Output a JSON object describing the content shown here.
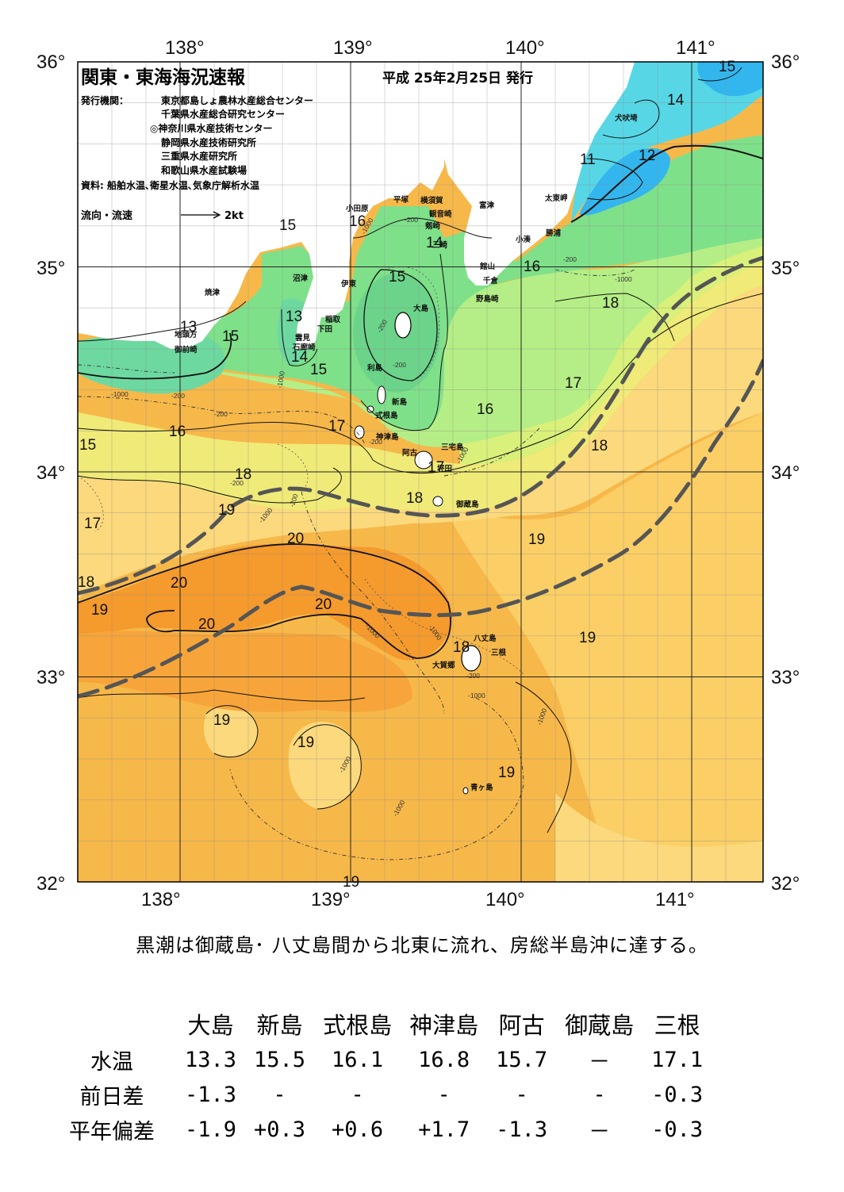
{
  "header": {
    "title": "関東・東海海況速報",
    "issue": "平成 25年2月25日 発行",
    "issuer_label": "発行機関：",
    "issuers": [
      "東京都島しょ農林水産総合センター",
      "千葉県水産総合研究センター",
      "◎神奈川県水産技術センター",
      "静岡県水産技術研究所",
      "三重県水産研究所",
      "和歌山県水産試験場"
    ],
    "source": "資料: 船舶水温､衛星水温､気象庁解析水温",
    "legend_label": "流向・流速",
    "legend_scale": "2kt"
  },
  "axes": {
    "lon": [
      "138°",
      "139°",
      "140°",
      "141°"
    ],
    "lat": [
      "36°",
      "35°",
      "34°",
      "33°",
      "32°"
    ]
  },
  "isotherm_labels": [
    "15",
    "16",
    "13",
    "15",
    "14",
    "15",
    "14",
    "11",
    "12",
    "14",
    "15",
    "13",
    "14",
    "15",
    "16",
    "17",
    "18",
    "15",
    "16",
    "16",
    "17",
    "18",
    "17",
    "18",
    "18",
    "17",
    "19",
    "18",
    "17",
    "19",
    "20",
    "20",
    "20",
    "20",
    "19",
    "19",
    "19",
    "19",
    "18",
    "19",
    "19"
  ],
  "depth_labels": [
    "-1000",
    "-200",
    "-200",
    "-1000",
    "-200",
    "-200",
    "-200",
    "-1000",
    "-1000",
    "-200",
    "-1000",
    "-200",
    "-1000",
    "-200",
    "-200",
    "-1000",
    "-1000",
    "-1000",
    "-1000",
    "-1000",
    "-1000",
    "-200"
  ],
  "places": [
    "犬吠埼",
    "太東岬",
    "勝浦",
    "小湊",
    "富津",
    "館山",
    "千倉",
    "野島崎",
    "観音崎",
    "剱崎",
    "三崎",
    "横須賀",
    "平塚",
    "小田原",
    "沼津",
    "伊東",
    "大島",
    "稲取",
    "下田",
    "雲見",
    "石廊崎",
    "焼津",
    "地頭方",
    "御前崎",
    "利島",
    "新島",
    "式根島",
    "神津島",
    "三宅島",
    "阿古",
    "坪田",
    "御蔵島",
    "八丈島",
    "三根",
    "大賀郷",
    "青ヶ島"
  ],
  "colors": {
    "kuroshio_axis": "#555555",
    "warm_core": "#f59a2c",
    "warm": "#f7b84a",
    "mid": "#fbd97c",
    "cool": "#d9f07a",
    "green": "#7fe08a",
    "cold": "#57d7e6",
    "coldest": "#33b6ee"
  },
  "summary": "黒潮は御蔵島･ 八丈島間から北東に流れ、房総半島沖に達する。",
  "table": {
    "islands": [
      "大島",
      "新島",
      "式根島",
      "神津島",
      "阿古",
      "御蔵島",
      "三根"
    ],
    "rows": [
      {
        "label": "水温",
        "values": [
          "13.3",
          "15.5",
          "16.1",
          "16.8",
          "15.7",
          "－",
          "17.1"
        ]
      },
      {
        "label": "前日差",
        "values": [
          "-1.3",
          "-",
          "-",
          "-",
          "-",
          "-",
          "-0.3"
        ]
      },
      {
        "label": "平年偏差",
        "values": [
          "-1.9",
          "+0.3",
          "+0.6",
          "+1.7",
          "-1.3",
          "－",
          "-0.3"
        ]
      }
    ]
  }
}
